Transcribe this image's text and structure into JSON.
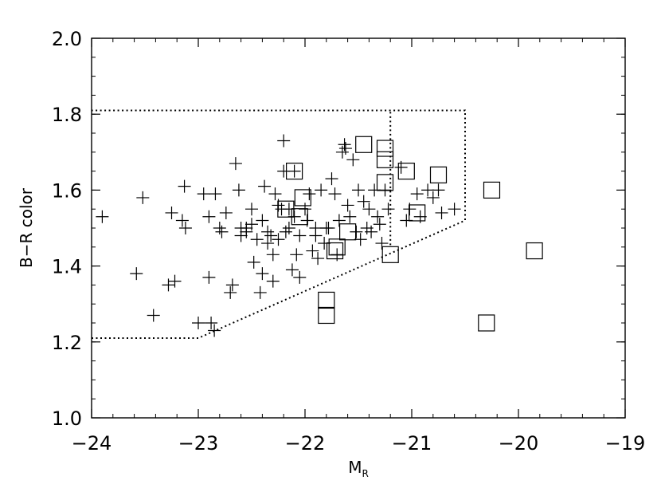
{
  "chart_data": {
    "type": "scatter",
    "title": "",
    "xlabel": "M",
    "xlabel_subscript": "R",
    "ylabel": "B−R color",
    "xlim": [
      -24,
      -19
    ],
    "ylim": [
      1.0,
      2.0
    ],
    "x_ticks": [
      -24,
      -23,
      -22,
      -21,
      -20,
      -19
    ],
    "x_tick_labels": [
      "−24",
      "−23",
      "−22",
      "−21",
      "−20",
      "−19"
    ],
    "y_ticks": [
      1.0,
      1.2,
      1.4,
      1.6,
      1.8,
      2.0
    ],
    "y_tick_labels": [
      "1.0",
      "1.2",
      "1.4",
      "1.6",
      "1.8",
      "2.0"
    ],
    "grid": false,
    "selection_boundary": {
      "style": "dotted",
      "points": [
        [
          -24.0,
          1.21
        ],
        [
          -23.0,
          1.21
        ],
        [
          -20.5,
          1.52
        ],
        [
          -20.5,
          1.81
        ],
        [
          -24.0,
          1.81
        ]
      ]
    },
    "divider_line": {
      "style": "dotted",
      "x": -21.2,
      "y_range": [
        1.455,
        1.81
      ]
    },
    "series": [
      {
        "marker": "plus",
        "points": [
          [
            -23.9,
            1.53
          ],
          [
            -23.52,
            1.58
          ],
          [
            -23.58,
            1.38
          ],
          [
            -23.42,
            1.27
          ],
          [
            -23.25,
            1.54
          ],
          [
            -23.13,
            1.61
          ],
          [
            -23.28,
            1.35
          ],
          [
            -23.22,
            1.36
          ],
          [
            -23.15,
            1.52
          ],
          [
            -23.12,
            1.5
          ],
          [
            -23.0,
            1.25
          ],
          [
            -22.95,
            1.59
          ],
          [
            -22.9,
            1.53
          ],
          [
            -22.9,
            1.37
          ],
          [
            -22.88,
            1.25
          ],
          [
            -22.85,
            1.23
          ],
          [
            -22.84,
            1.59
          ],
          [
            -22.8,
            1.5
          ],
          [
            -22.78,
            1.49
          ],
          [
            -22.74,
            1.54
          ],
          [
            -22.7,
            1.33
          ],
          [
            -22.68,
            1.35
          ],
          [
            -22.65,
            1.67
          ],
          [
            -22.62,
            1.6
          ],
          [
            -22.6,
            1.5
          ],
          [
            -22.55,
            1.5
          ],
          [
            -22.5,
            1.55
          ],
          [
            -22.48,
            1.41
          ],
          [
            -22.45,
            1.47
          ],
          [
            -22.42,
            1.33
          ],
          [
            -22.4,
            1.38
          ],
          [
            -22.38,
            1.61
          ],
          [
            -22.35,
            1.49
          ],
          [
            -22.32,
            1.48
          ],
          [
            -22.3,
            1.36
          ],
          [
            -22.28,
            1.59
          ],
          [
            -22.25,
            1.56
          ],
          [
            -22.22,
            1.55
          ],
          [
            -22.2,
            1.65
          ],
          [
            -22.18,
            1.49
          ],
          [
            -22.15,
            1.5
          ],
          [
            -22.12,
            1.39
          ],
          [
            -22.1,
            1.53
          ],
          [
            -22.08,
            1.43
          ],
          [
            -22.05,
            1.37
          ],
          [
            -22.0,
            1.55
          ],
          [
            -21.98,
            1.52
          ],
          [
            -21.96,
            1.59
          ],
          [
            -21.93,
            1.44
          ],
          [
            -21.9,
            1.48
          ],
          [
            -21.88,
            1.42
          ],
          [
            -21.85,
            1.6
          ],
          [
            -21.82,
            1.46
          ],
          [
            -21.8,
            1.5
          ],
          [
            -21.78,
            1.5
          ],
          [
            -21.75,
            1.63
          ],
          [
            -21.72,
            1.59
          ],
          [
            -21.7,
            1.43
          ],
          [
            -21.68,
            1.52
          ],
          [
            -21.65,
            1.7
          ],
          [
            -21.63,
            1.72
          ],
          [
            -21.62,
            1.71
          ],
          [
            -21.6,
            1.56
          ],
          [
            -21.58,
            1.53
          ],
          [
            -21.55,
            1.68
          ],
          [
            -21.52,
            1.49
          ],
          [
            -21.5,
            1.6
          ],
          [
            -21.48,
            1.47
          ],
          [
            -21.45,
            1.57
          ],
          [
            -21.42,
            1.5
          ],
          [
            -21.4,
            1.55
          ],
          [
            -21.38,
            1.49
          ],
          [
            -21.35,
            1.6
          ],
          [
            -21.32,
            1.53
          ],
          [
            -21.3,
            1.51
          ],
          [
            -21.28,
            1.46
          ],
          [
            -21.25,
            1.6
          ],
          [
            -21.22,
            1.55
          ],
          [
            -22.2,
            1.73
          ],
          [
            -22.1,
            1.65
          ],
          [
            -22.05,
            1.48
          ],
          [
            -21.9,
            1.5
          ],
          [
            -22.3,
            1.43
          ],
          [
            -22.35,
            1.46
          ],
          [
            -22.5,
            1.51
          ],
          [
            -22.6,
            1.48
          ],
          [
            -22.55,
            1.49
          ],
          [
            -22.4,
            1.52
          ],
          [
            -22.25,
            1.47
          ],
          [
            -22.15,
            1.55
          ],
          [
            -20.92,
            1.53
          ],
          [
            -20.85,
            1.6
          ],
          [
            -20.8,
            1.58
          ],
          [
            -20.75,
            1.6
          ],
          [
            -20.72,
            1.54
          ],
          [
            -20.6,
            1.55
          ],
          [
            -21.02,
            1.55
          ],
          [
            -21.05,
            1.52
          ],
          [
            -20.95,
            1.59
          ],
          [
            -21.1,
            1.66
          ]
        ]
      },
      {
        "marker": "square",
        "points": [
          [
            -21.45,
            1.72
          ],
          [
            -21.25,
            1.71
          ],
          [
            -21.25,
            1.68
          ],
          [
            -21.05,
            1.65
          ],
          [
            -20.75,
            1.64
          ],
          [
            -21.25,
            1.62
          ],
          [
            -22.1,
            1.65
          ],
          [
            -22.02,
            1.58
          ],
          [
            -22.18,
            1.55
          ],
          [
            -22.05,
            1.53
          ],
          [
            -21.6,
            1.49
          ],
          [
            -21.7,
            1.45
          ],
          [
            -21.72,
            1.44
          ],
          [
            -21.2,
            1.43
          ],
          [
            -20.95,
            1.54
          ],
          [
            -20.25,
            1.6
          ],
          [
            -19.85,
            1.44
          ],
          [
            -21.8,
            1.31
          ],
          [
            -21.8,
            1.27
          ],
          [
            -20.3,
            1.25
          ]
        ]
      }
    ]
  }
}
